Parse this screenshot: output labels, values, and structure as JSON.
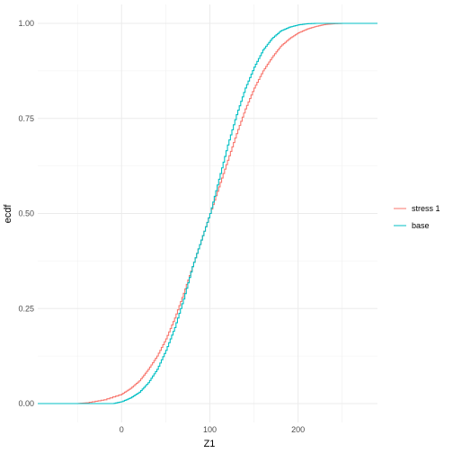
{
  "chart_data": {
    "type": "line",
    "xlabel": "Z1",
    "ylabel": "ecdf",
    "xlim": [
      -95,
      290
    ],
    "ylim": [
      0,
      1
    ],
    "x_ticks": [
      0,
      100,
      200
    ],
    "x_tick_labels": [
      "0",
      "100",
      "200"
    ],
    "y_ticks": [
      0,
      0.25,
      0.5,
      0.75,
      1
    ],
    "y_tick_labels": [
      "0.00",
      "0.25",
      "0.50",
      "0.75",
      "1.00"
    ],
    "grid": true,
    "legend_position": "right",
    "series": [
      {
        "name": "stress 1",
        "color": "#F8766D",
        "x": [
          -95,
          -50,
          -40,
          -20,
          0,
          10,
          20,
          30,
          40,
          50,
          60,
          70,
          80,
          90,
          100,
          110,
          120,
          130,
          140,
          150,
          160,
          170,
          180,
          190,
          200,
          210,
          220,
          230,
          240,
          250,
          290
        ],
        "y": [
          0,
          0,
          0.002,
          0.01,
          0.025,
          0.04,
          0.06,
          0.09,
          0.125,
          0.17,
          0.225,
          0.29,
          0.36,
          0.43,
          0.5,
          0.57,
          0.64,
          0.71,
          0.775,
          0.83,
          0.875,
          0.91,
          0.94,
          0.96,
          0.975,
          0.985,
          0.992,
          0.997,
          0.999,
          1.0,
          1.0
        ]
      },
      {
        "name": "base",
        "color": "#00BFC4",
        "x": [
          -95,
          -10,
          0,
          10,
          20,
          30,
          40,
          50,
          60,
          70,
          80,
          90,
          100,
          110,
          120,
          130,
          140,
          150,
          160,
          170,
          180,
          190,
          200,
          210,
          220,
          290
        ],
        "y": [
          0,
          0,
          0.005,
          0.015,
          0.03,
          0.055,
          0.09,
          0.14,
          0.2,
          0.275,
          0.36,
          0.43,
          0.5,
          0.59,
          0.68,
          0.76,
          0.83,
          0.885,
          0.93,
          0.96,
          0.98,
          0.99,
          0.996,
          0.999,
          1.0,
          1.0
        ]
      }
    ]
  }
}
